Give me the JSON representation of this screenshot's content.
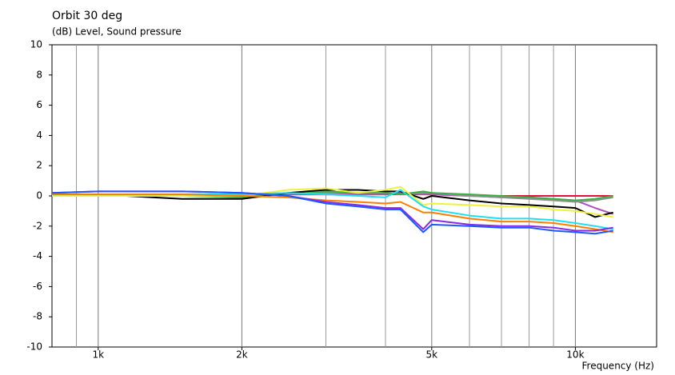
{
  "chart_data": {
    "type": "line",
    "title": "Orbit 30 deg",
    "y_label": "(dB)  Level, Sound pressure",
    "x_label": "Frequency  (Hz)",
    "log_x": true,
    "grid": "x",
    "xlim": [
      800,
      14800
    ],
    "xticks": [
      {
        "value": 1000,
        "label": "1k"
      },
      {
        "value": 2000,
        "label": "2k"
      },
      {
        "value": 5000,
        "label": "5k"
      },
      {
        "value": 10000,
        "label": "10k"
      }
    ],
    "x_minor_grid": [
      900,
      3000,
      4000,
      6000,
      7000,
      8000,
      9000
    ],
    "ylim": [
      -10,
      10
    ],
    "yticks": [
      -10,
      -8,
      -6,
      -4,
      -2,
      0,
      2,
      4,
      6,
      8,
      10
    ],
    "x": [
      800,
      1000,
      1500,
      2000,
      2500,
      3000,
      3500,
      4000,
      4300,
      4800,
      5000,
      6000,
      7000,
      8000,
      9000,
      10000,
      11000,
      12000
    ],
    "series": [
      {
        "color": "#dc143c",
        "values": [
          0.1,
          0.1,
          0.1,
          0.1,
          0.1,
          0.1,
          0.1,
          0.1,
          0.1,
          0.1,
          0.1,
          0,
          0,
          0,
          0,
          0,
          0,
          0
        ]
      },
      {
        "color": "#b050c0",
        "values": [
          0.1,
          0.1,
          0.1,
          0.1,
          0.1,
          0.1,
          0.1,
          0.1,
          0.2,
          0.1,
          0.1,
          0,
          -0.1,
          -0.1,
          -0.2,
          -0.3,
          -0.8,
          -1.2
        ]
      },
      {
        "color": "#909090",
        "values": [
          0.1,
          0.1,
          0.1,
          0.1,
          0.2,
          0.2,
          0.2,
          0.2,
          0.1,
          0.2,
          0.2,
          0,
          -0.1,
          -0.2,
          -0.3,
          -0.4,
          -0.3,
          -0.1
        ]
      },
      {
        "color": "#3cb043",
        "values": [
          0,
          0,
          0,
          -0.1,
          0.2,
          0.3,
          0.2,
          0.2,
          0.1,
          0.3,
          0.2,
          0.1,
          0,
          -0.1,
          -0.2,
          -0.3,
          -0.2,
          0
        ]
      },
      {
        "color": "#000000",
        "values": [
          0.1,
          0.1,
          -0.2,
          -0.2,
          0.2,
          0.4,
          0.4,
          0.3,
          0.3,
          -0.2,
          0,
          -0.3,
          -0.5,
          -0.6,
          -0.7,
          -0.8,
          -1.4,
          -1.1
        ]
      },
      {
        "color": "#f0f040",
        "values": [
          0,
          0,
          0,
          0,
          0.4,
          0.5,
          0.2,
          0.4,
          0.6,
          -0.6,
          -0.5,
          -0.6,
          -0.7,
          -0.7,
          -0.9,
          -1.0,
          -1.2,
          -1.4
        ]
      },
      {
        "color": "#20e0f0",
        "values": [
          0.1,
          0.1,
          0.1,
          0.1,
          0.2,
          0.1,
          0,
          -0.1,
          0.4,
          -0.7,
          -0.9,
          -1.3,
          -1.5,
          -1.5,
          -1.6,
          -1.8,
          -2.0,
          -2.2
        ]
      },
      {
        "color": "#ff7f00",
        "values": [
          0.1,
          0.1,
          0.1,
          0,
          -0.1,
          -0.3,
          -0.4,
          -0.5,
          -0.4,
          -1.1,
          -1.1,
          -1.5,
          -1.7,
          -1.7,
          -1.8,
          -2.0,
          -2.2,
          -2.4
        ]
      },
      {
        "color": "#8a2be2",
        "values": [
          0.2,
          0.3,
          0.3,
          0.2,
          0,
          -0.4,
          -0.6,
          -0.8,
          -0.8,
          -2.2,
          -1.6,
          -1.9,
          -2.0,
          -2.0,
          -2.1,
          -2.3,
          -2.3,
          -2.1
        ]
      },
      {
        "color": "#1e5aff",
        "values": [
          0.2,
          0.3,
          0.3,
          0.2,
          0,
          -0.5,
          -0.7,
          -0.9,
          -0.9,
          -2.4,
          -1.9,
          -2.0,
          -2.1,
          -2.1,
          -2.3,
          -2.4,
          -2.5,
          -2.3
        ]
      }
    ]
  }
}
